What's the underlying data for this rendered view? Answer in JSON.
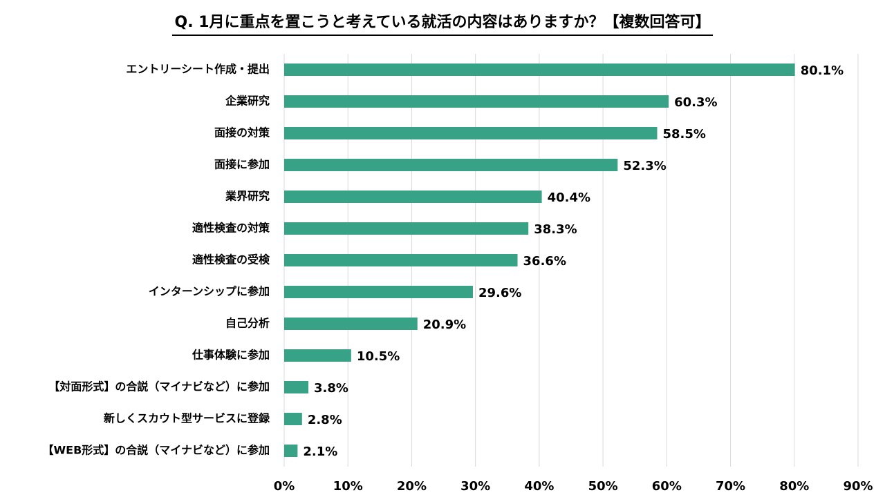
{
  "chart_data": {
    "type": "bar",
    "orientation": "horizontal",
    "title": "Q. 1月に重点を置こうと考えている就活の内容はありますか？【複数回答可】",
    "categories": [
      "エントリーシート作成・提出",
      "企業研究",
      "面接の対策",
      "面接に参加",
      "業界研究",
      "適性検査の対策",
      "適性検査の受検",
      "インターンシップに参加",
      "自己分析",
      "仕事体験に参加",
      "【対面形式】の合説（マイナビなど）に参加",
      "新しくスカウト型サービスに登録",
      "【WEB形式】の合説（マイナビなど）に参加"
    ],
    "values": [
      80.1,
      60.3,
      58.5,
      52.3,
      40.4,
      38.3,
      36.6,
      29.6,
      20.9,
      10.5,
      3.8,
      2.8,
      2.1
    ],
    "value_labels": [
      "80.1%",
      "60.3%",
      "58.5%",
      "52.3%",
      "40.4%",
      "38.3%",
      "36.6%",
      "29.6%",
      "20.9%",
      "10.5%",
      "3.8%",
      "2.8%",
      "2.1%"
    ],
    "xlim": [
      0,
      90
    ],
    "xticks": [
      0,
      10,
      20,
      30,
      40,
      50,
      60,
      70,
      80,
      90
    ],
    "xtick_labels": [
      "0%",
      "10%",
      "20%",
      "30%",
      "40%",
      "50%",
      "60%",
      "70%",
      "80%",
      "90%"
    ],
    "xlabel": "",
    "ylabel": "",
    "grid": true,
    "legend": false,
    "bar_color": "#38a286",
    "grid_color": "#d9d9d9"
  }
}
